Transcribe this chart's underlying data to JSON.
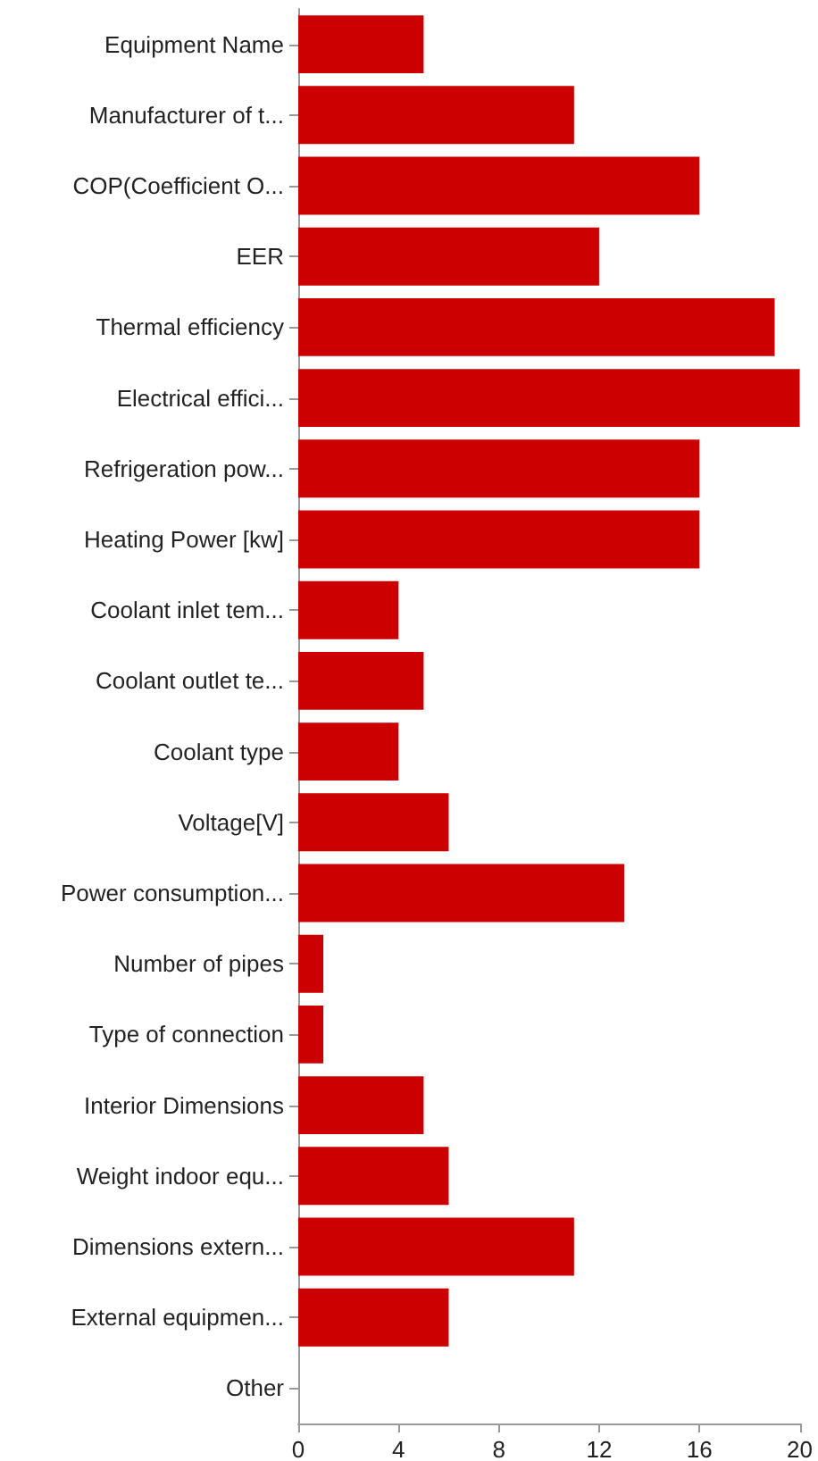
{
  "chart_data": {
    "type": "bar",
    "orientation": "horizontal",
    "categories": [
      "Equipment Name",
      "Manufacturer of t...",
      "COP(Coefficient O...",
      "EER",
      "Thermal efficiency",
      "Electrical effici...",
      "Refrigeration pow...",
      "Heating Power [kw]",
      "Coolant inlet tem...",
      "Coolant outlet te...",
      "Coolant type",
      "Voltage[V]",
      "Power consumption...",
      "Number of pipes",
      "Type of connection",
      "Interior Dimensions",
      "Weight indoor equ...",
      "Dimensions extern...",
      "External equipmen...",
      "Other"
    ],
    "values": [
      5,
      11,
      16,
      12,
      19,
      20,
      16,
      16,
      4,
      5,
      4,
      6,
      13,
      1,
      1,
      5,
      6,
      11,
      6,
      0
    ],
    "color": "#cc0000",
    "xlim": [
      0,
      20
    ],
    "xticks": [
      0,
      4,
      8,
      12,
      16,
      20
    ],
    "grid": false
  }
}
